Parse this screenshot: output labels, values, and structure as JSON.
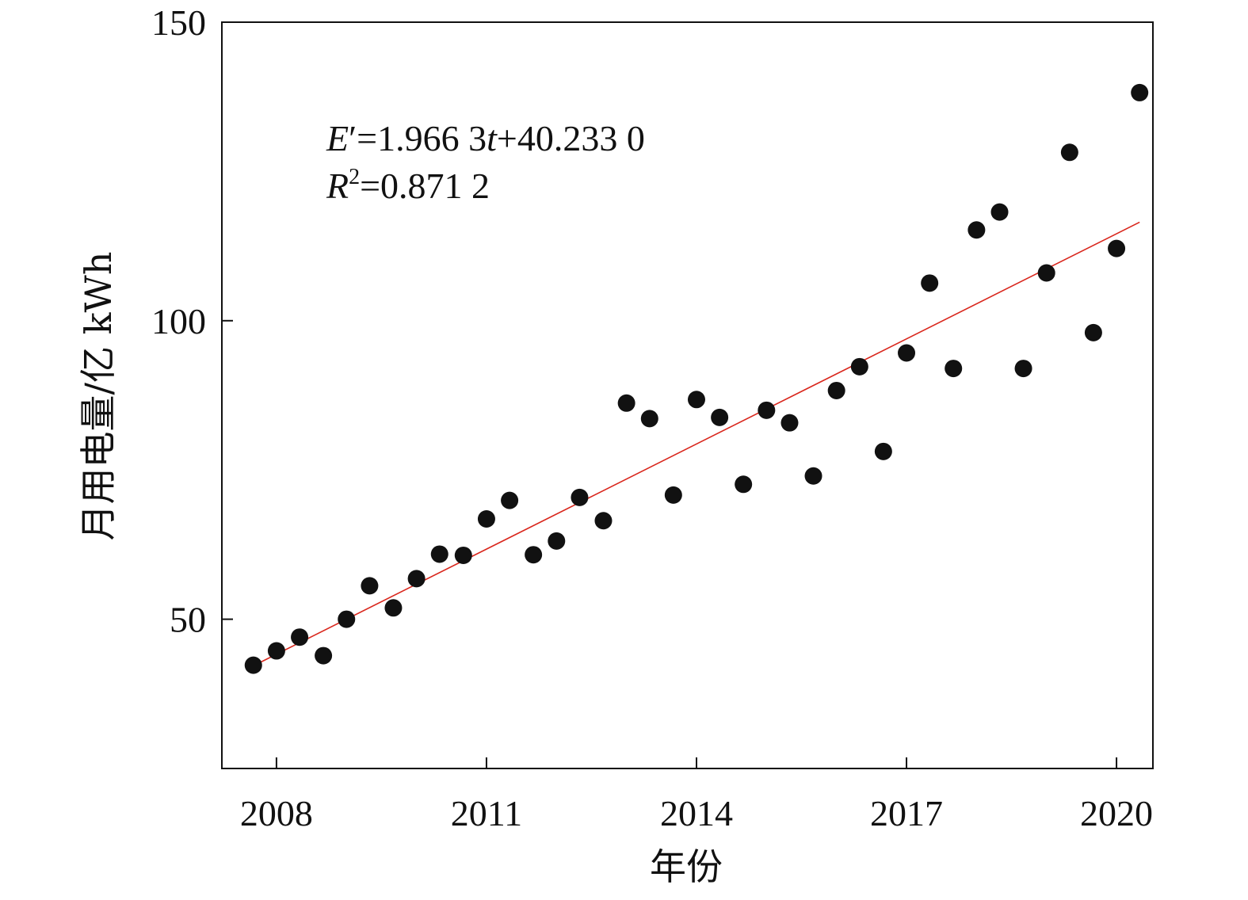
{
  "chart_data": {
    "type": "scatter",
    "title": "",
    "xlabel": "年份",
    "ylabel": "月用电量/亿 kWh",
    "xlim": [
      2007.22,
      2020.52
    ],
    "ylim": [
      25,
      150
    ],
    "xticks": [
      2008,
      2011,
      2014,
      2017,
      2020
    ],
    "xtick_labels": [
      "2008",
      "2011",
      "2014",
      "2017",
      "2020"
    ],
    "yticks": [
      50,
      100,
      150
    ],
    "ytick_labels": [
      "50",
      "100",
      "150"
    ],
    "grid": false,
    "legend": "none",
    "point_color": "#111111",
    "line_color": "#d9261c",
    "fit_line": {
      "x": [
        2007.67,
        2020.33
      ],
      "y": [
        42.2,
        116.5
      ]
    },
    "annotation": {
      "line1": {
        "var": "E",
        "prime": "′",
        "eq": "=1.966 3",
        "t": "t",
        "rest": "+40.233 0"
      },
      "line2": {
        "var": "R",
        "sup": "2",
        "eq": "=0.871 2"
      }
    },
    "points": [
      {
        "x": 2007.67,
        "y": 42.3
      },
      {
        "x": 2008.0,
        "y": 44.7
      },
      {
        "x": 2008.33,
        "y": 47.0
      },
      {
        "x": 2008.67,
        "y": 43.9
      },
      {
        "x": 2009.0,
        "y": 50.0
      },
      {
        "x": 2009.33,
        "y": 55.6
      },
      {
        "x": 2009.67,
        "y": 51.9
      },
      {
        "x": 2010.0,
        "y": 56.8
      },
      {
        "x": 2010.33,
        "y": 60.9
      },
      {
        "x": 2010.67,
        "y": 60.7
      },
      {
        "x": 2011.0,
        "y": 66.8
      },
      {
        "x": 2011.33,
        "y": 69.9
      },
      {
        "x": 2011.67,
        "y": 60.8
      },
      {
        "x": 2012.0,
        "y": 63.1
      },
      {
        "x": 2012.33,
        "y": 70.4
      },
      {
        "x": 2012.67,
        "y": 66.5
      },
      {
        "x": 2013.0,
        "y": 86.2
      },
      {
        "x": 2013.33,
        "y": 83.6
      },
      {
        "x": 2013.67,
        "y": 70.8
      },
      {
        "x": 2014.0,
        "y": 86.8
      },
      {
        "x": 2014.33,
        "y": 83.8
      },
      {
        "x": 2014.67,
        "y": 72.6
      },
      {
        "x": 2015.0,
        "y": 85.0
      },
      {
        "x": 2015.33,
        "y": 82.9
      },
      {
        "x": 2015.67,
        "y": 74.0
      },
      {
        "x": 2016.0,
        "y": 88.3
      },
      {
        "x": 2016.33,
        "y": 92.3
      },
      {
        "x": 2016.67,
        "y": 78.1
      },
      {
        "x": 2017.0,
        "y": 94.6
      },
      {
        "x": 2017.33,
        "y": 106.3
      },
      {
        "x": 2017.67,
        "y": 92.0
      },
      {
        "x": 2018.0,
        "y": 115.2
      },
      {
        "x": 2018.33,
        "y": 118.2
      },
      {
        "x": 2018.67,
        "y": 92.0
      },
      {
        "x": 2019.0,
        "y": 108.0
      },
      {
        "x": 2019.33,
        "y": 128.2
      },
      {
        "x": 2019.67,
        "y": 98.0
      },
      {
        "x": 2020.0,
        "y": 112.1
      },
      {
        "x": 2020.33,
        "y": 138.2
      }
    ]
  }
}
